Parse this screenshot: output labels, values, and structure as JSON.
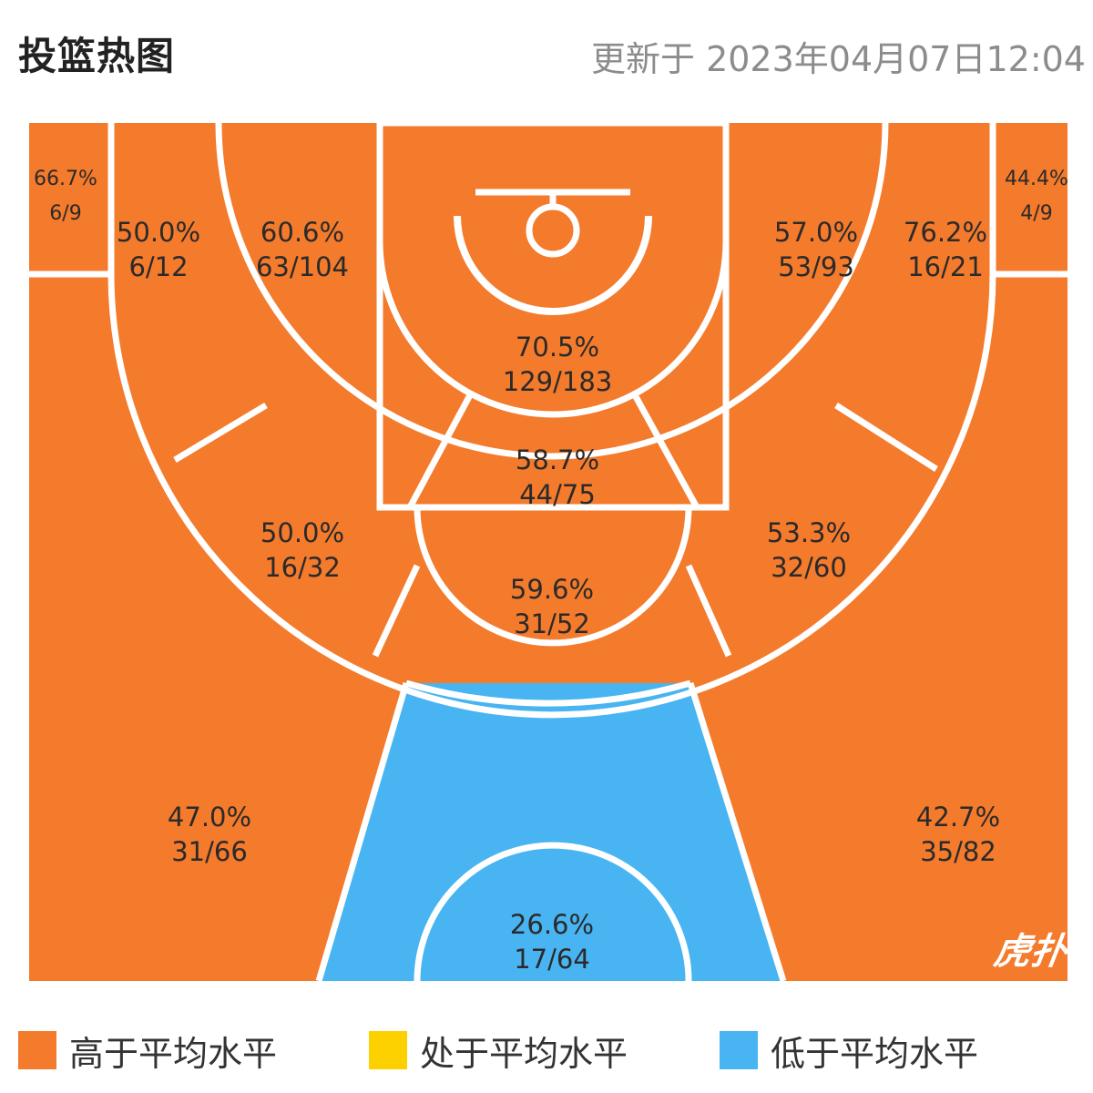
{
  "header": {
    "title": "投篮热图",
    "updated": "更新于 2023年04月07日12:04"
  },
  "colors": {
    "above": "#f47a2c",
    "average": "#fdd000",
    "below": "#48b4f2",
    "lines": "#ffffff"
  },
  "zones": {
    "left_corner_three": {
      "pct": "66.7%",
      "made": "6/9",
      "level": "above"
    },
    "right_corner_three": {
      "pct": "44.4%",
      "made": "4/9",
      "level": "above"
    },
    "left_baseline_mid": {
      "pct": "50.0%",
      "made": "6/12",
      "level": "above"
    },
    "left_mid": {
      "pct": "60.6%",
      "made": "63/104",
      "level": "above"
    },
    "restricted_area": {
      "pct": "70.5%",
      "made": "129/183",
      "level": "above"
    },
    "paint": {
      "pct": "58.7%",
      "made": "44/75",
      "level": "above"
    },
    "right_mid": {
      "pct": "57.0%",
      "made": "53/93",
      "level": "above"
    },
    "right_baseline_mid": {
      "pct": "76.2%",
      "made": "16/21",
      "level": "above"
    },
    "left_elbow": {
      "pct": "50.0%",
      "made": "16/32",
      "level": "above"
    },
    "free_throw": {
      "pct": "59.6%",
      "made": "31/52",
      "level": "above"
    },
    "right_elbow": {
      "pct": "53.3%",
      "made": "32/60",
      "level": "above"
    },
    "left_wing_three": {
      "pct": "47.0%",
      "made": "31/66",
      "level": "above"
    },
    "right_wing_three": {
      "pct": "42.7%",
      "made": "35/82",
      "level": "above"
    },
    "top_three": {
      "pct": "26.6%",
      "made": "17/64",
      "level": "below"
    }
  },
  "logo": "虎扑",
  "legend": [
    {
      "label": "高于平均水平",
      "color": "#f47a2c"
    },
    {
      "label": "处于平均水平",
      "color": "#fdd000"
    },
    {
      "label": "低于平均水平",
      "color": "#48b4f2"
    }
  ]
}
